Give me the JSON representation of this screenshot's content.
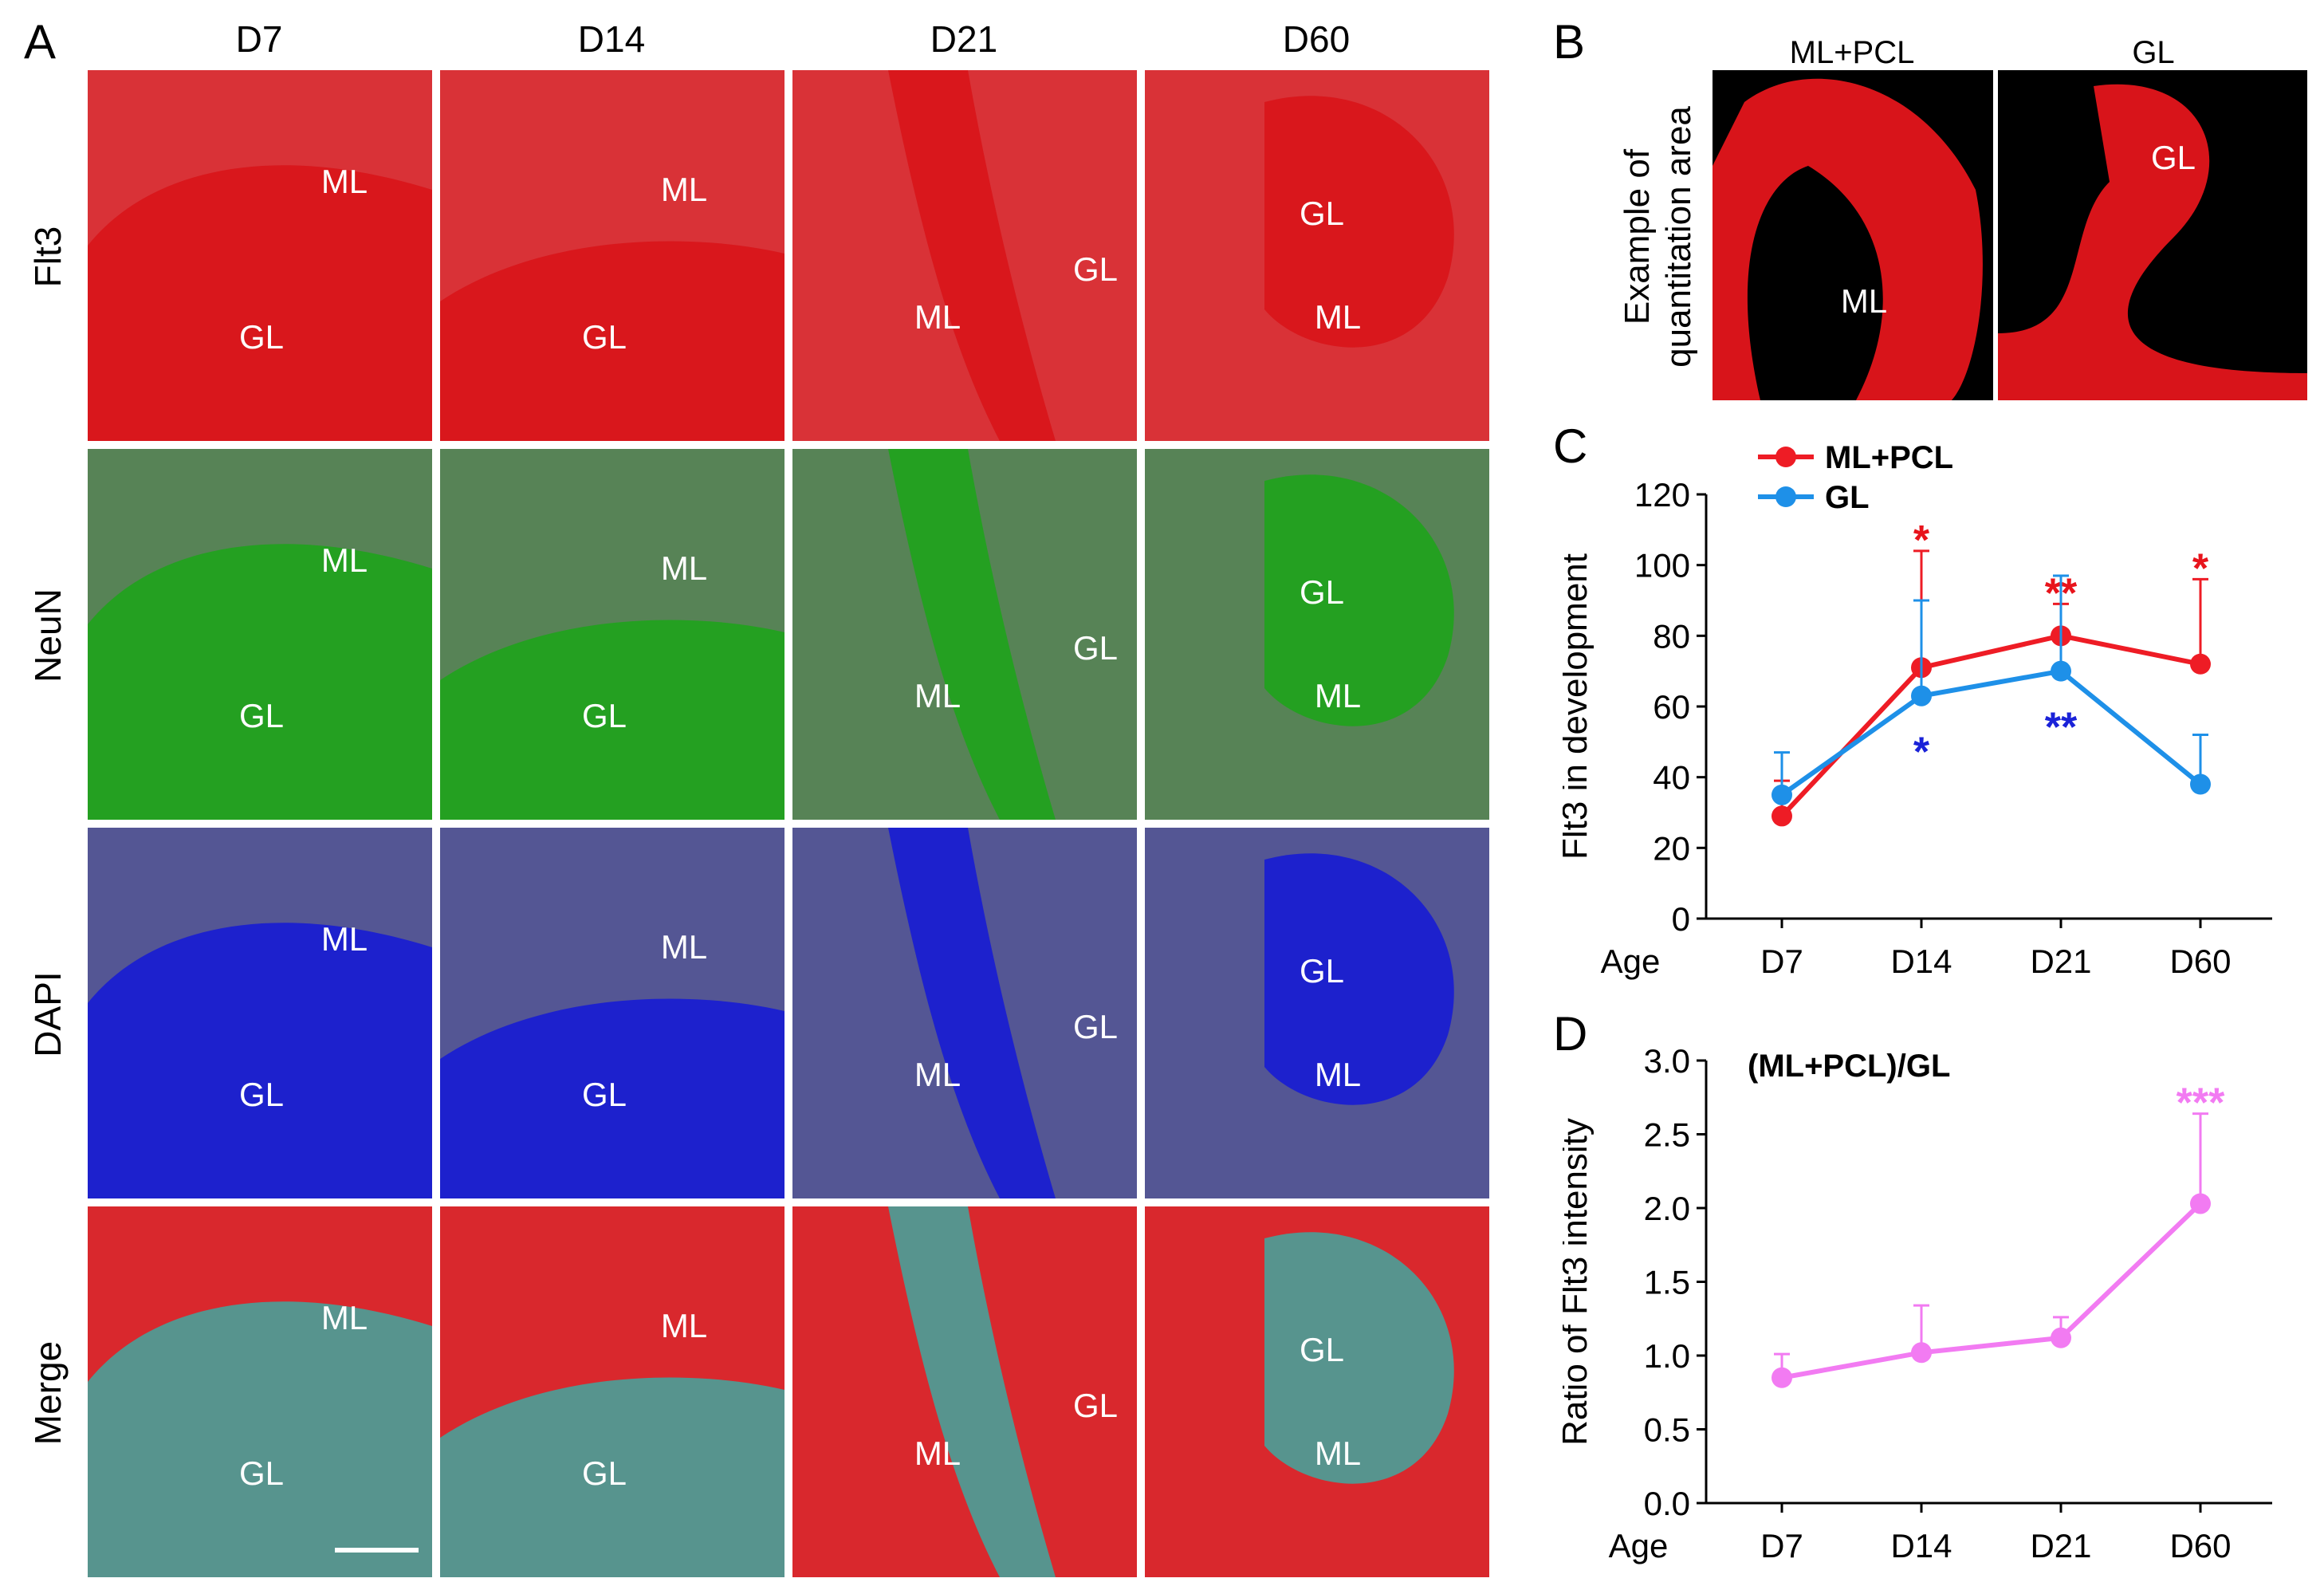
{
  "panels": {
    "A": {
      "letter": "A",
      "columns": [
        "D7",
        "D14",
        "D21",
        "D60"
      ],
      "rows": [
        "Flt3",
        "NeuN",
        "DAPI",
        "Merge"
      ],
      "region_labels": {
        "ml": "ML",
        "gl": "GL"
      }
    },
    "B": {
      "letter": "B",
      "title": "Example of quantitation area",
      "title_line1": "Example of",
      "title_line2": "quantitation area",
      "images": [
        {
          "head": "ML+PCL",
          "label": "ML"
        },
        {
          "head": "GL",
          "label": "GL"
        }
      ]
    },
    "C": {
      "letter": "C"
    },
    "D": {
      "letter": "D"
    }
  },
  "colors": {
    "red_series": "#ee1c25",
    "blue_series": "#1e90e8",
    "pink_series": "#f27bf2",
    "flt3_tile": "#d8141a",
    "neun_tile": "#22a11f",
    "dapi_tile": "#1a1fd0",
    "red_star": "#e8141c",
    "blue_star": "#1a22d8",
    "pink_star": "#f27bf2"
  },
  "chart_data": [
    {
      "panel": "C",
      "type": "line",
      "categories": [
        "D7",
        "D14",
        "D21",
        "D60"
      ],
      "x_axis_prefix": "Age",
      "ylabel": "Flt3 in development",
      "ylim": [
        0,
        120
      ],
      "yticks": [
        "0",
        "20",
        "40",
        "60",
        "80",
        "100",
        "120"
      ],
      "legend_position": "top-left",
      "series": [
        {
          "name": "ML+PCL",
          "values": [
            29,
            71,
            80,
            72
          ],
          "error_up": [
            10,
            33,
            9,
            24
          ],
          "significance": [
            "",
            "*",
            "**",
            "*"
          ],
          "color": "#ee1c25"
        },
        {
          "name": "GL",
          "values": [
            35,
            63,
            70,
            38
          ],
          "error_up": [
            12,
            27,
            27,
            14
          ],
          "significance": [
            "",
            "*",
            "**",
            ""
          ],
          "color": "#1e90e8"
        }
      ]
    },
    {
      "panel": "D",
      "type": "line",
      "title": "(ML+PCL)/GL",
      "categories": [
        "D7",
        "D14",
        "D21",
        "D60"
      ],
      "x_axis_prefix": "Age",
      "ylabel": "Ratio of Flt3 intensity",
      "ylim": [
        0,
        3.0
      ],
      "yticks": [
        "0.0",
        "0.5",
        "1.0",
        "1.5",
        "2.0",
        "2.5",
        "3.0"
      ],
      "series": [
        {
          "name": "(ML+PCL)/GL",
          "values": [
            0.85,
            1.02,
            1.12,
            2.03
          ],
          "error_up": [
            0.16,
            0.32,
            0.14,
            0.61
          ],
          "significance": [
            "",
            "",
            "",
            "***"
          ],
          "color": "#f27bf2"
        }
      ]
    }
  ]
}
